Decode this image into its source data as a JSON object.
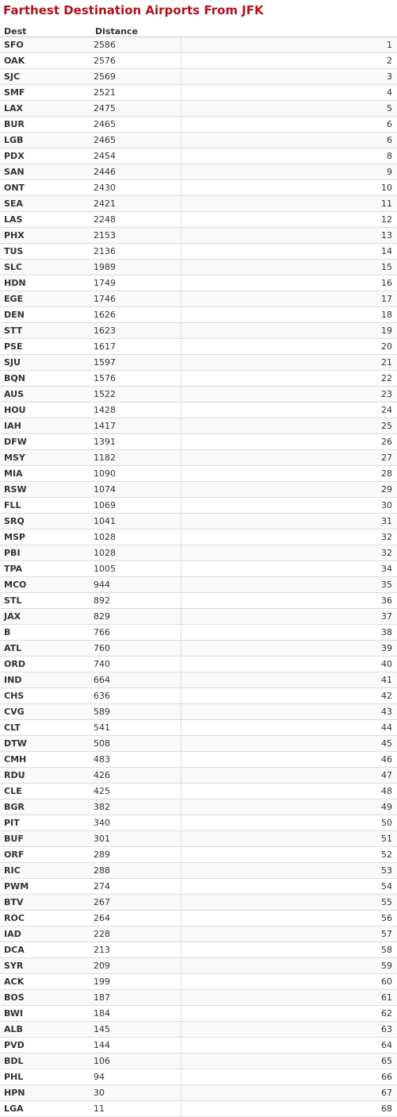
{
  "title": "Farthest Destination Airports From JFK",
  "columns": [
    "Dest",
    "Distance",
    ""
  ],
  "rows": [
    [
      "SFO",
      "2586",
      "1"
    ],
    [
      "OAK",
      "2576",
      "2"
    ],
    [
      "SJC",
      "2569",
      "3"
    ],
    [
      "SMF",
      "2521",
      "4"
    ],
    [
      "LAX",
      "2475",
      "5"
    ],
    [
      "BUR",
      "2465",
      "6"
    ],
    [
      "LGB",
      "2465",
      "6"
    ],
    [
      "PDX",
      "2454",
      "8"
    ],
    [
      "SAN",
      "2446",
      "9"
    ],
    [
      "ONT",
      "2430",
      "10"
    ],
    [
      "SEA",
      "2421",
      "11"
    ],
    [
      "LAS",
      "2248",
      "12"
    ],
    [
      "PHX",
      "2153",
      "13"
    ],
    [
      "TUS",
      "2136",
      "14"
    ],
    [
      "SLC",
      "1989",
      "15"
    ],
    [
      "HDN",
      "1749",
      "16"
    ],
    [
      "EGE",
      "1746",
      "17"
    ],
    [
      "DEN",
      "1626",
      "18"
    ],
    [
      "STT",
      "1623",
      "19"
    ],
    [
      "PSE",
      "1617",
      "20"
    ],
    [
      "SJU",
      "1597",
      "21"
    ],
    [
      "BQN",
      "1576",
      "22"
    ],
    [
      "AUS",
      "1522",
      "23"
    ],
    [
      "HOU",
      "1428",
      "24"
    ],
    [
      "IAH",
      "1417",
      "25"
    ],
    [
      "DFW",
      "1391",
      "26"
    ],
    [
      "MSY",
      "1182",
      "27"
    ],
    [
      "MIA",
      "1090",
      "28"
    ],
    [
      "RSW",
      "1074",
      "29"
    ],
    [
      "FLL",
      "1069",
      "30"
    ],
    [
      "SRQ",
      "1041",
      "31"
    ],
    [
      "MSP",
      "1028",
      "32"
    ],
    [
      "PBI",
      "1028",
      "32"
    ],
    [
      "TPA",
      "1005",
      "34"
    ],
    [
      "MCO",
      "944",
      "35"
    ],
    [
      "STL",
      "892",
      "36"
    ],
    [
      "JAX",
      "829",
      "37"
    ],
    [
      "B",
      "766",
      "38"
    ],
    [
      "ATL",
      "760",
      "39"
    ],
    [
      "ORD",
      "740",
      "40"
    ],
    [
      "IND",
      "664",
      "41"
    ],
    [
      "CHS",
      "636",
      "42"
    ],
    [
      "CVG",
      "589",
      "43"
    ],
    [
      "CLT",
      "541",
      "44"
    ],
    [
      "DTW",
      "508",
      "45"
    ],
    [
      "CMH",
      "483",
      "46"
    ],
    [
      "RDU",
      "426",
      "47"
    ],
    [
      "CLE",
      "425",
      "48"
    ],
    [
      "BGR",
      "382",
      "49"
    ],
    [
      "PIT",
      "340",
      "50"
    ],
    [
      "BUF",
      "301",
      "51"
    ],
    [
      "ORF",
      "289",
      "52"
    ],
    [
      "RIC",
      "288",
      "53"
    ],
    [
      "PWM",
      "274",
      "54"
    ],
    [
      "BTV",
      "267",
      "55"
    ],
    [
      "ROC",
      "264",
      "56"
    ],
    [
      "IAD",
      "228",
      "57"
    ],
    [
      "DCA",
      "213",
      "58"
    ],
    [
      "SYR",
      "209",
      "59"
    ],
    [
      "ACK",
      "199",
      "60"
    ],
    [
      "BOS",
      "187",
      "61"
    ],
    [
      "BWI",
      "184",
      "62"
    ],
    [
      "ALB",
      "145",
      "63"
    ],
    [
      "PVD",
      "144",
      "64"
    ],
    [
      "BDL",
      "106",
      "65"
    ],
    [
      "PHL",
      "94",
      "66"
    ],
    [
      "HPN",
      "30",
      "67"
    ],
    [
      "LGA",
      "11",
      "68"
    ]
  ]
}
